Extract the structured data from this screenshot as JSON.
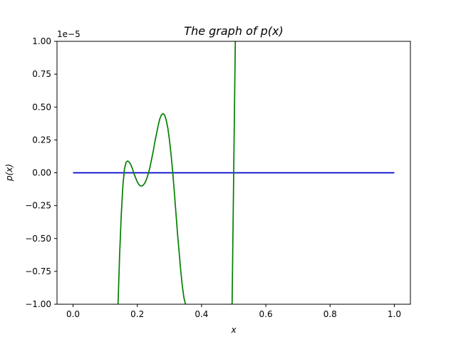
{
  "chart_data": {
    "type": "line",
    "title": "The graph of p(x)",
    "xlabel": "x",
    "ylabel": "p(x)",
    "y_offset_label": "1e−5",
    "xlim": [
      -0.05,
      1.05
    ],
    "ylim": [
      -1.0,
      1.0
    ],
    "x_ticks": [
      {
        "value": 0.0,
        "label": "0.0"
      },
      {
        "value": 0.2,
        "label": "0.2"
      },
      {
        "value": 0.4,
        "label": "0.4"
      },
      {
        "value": 0.6,
        "label": "0.6"
      },
      {
        "value": 0.8,
        "label": "0.8"
      },
      {
        "value": 1.0,
        "label": "1.0"
      }
    ],
    "y_ticks": [
      {
        "value": 1.0,
        "label": "1.00"
      },
      {
        "value": 0.75,
        "label": "0.75"
      },
      {
        "value": 0.5,
        "label": "0.50"
      },
      {
        "value": 0.25,
        "label": "0.25"
      },
      {
        "value": 0.0,
        "label": "0.00"
      },
      {
        "value": -0.25,
        "label": "−0.25"
      },
      {
        "value": -0.5,
        "label": "−0.50"
      },
      {
        "value": -0.75,
        "label": "−0.75"
      },
      {
        "value": -1.0,
        "label": "−1.00"
      }
    ],
    "grid": false,
    "series": [
      {
        "color": "#0000cc",
        "x": [
          0.0,
          1.0
        ],
        "y": [
          0.0,
          0.0
        ]
      },
      {
        "color": "#008000",
        "x": [
          0.14,
          0.145,
          0.15,
          0.155,
          0.16,
          0.165,
          0.17,
          0.175,
          0.18,
          0.185,
          0.19,
          0.195,
          0.2,
          0.205,
          0.21,
          0.215,
          0.22,
          0.225,
          0.23,
          0.235,
          0.24,
          0.245,
          0.25,
          0.255,
          0.26,
          0.265,
          0.27,
          0.275,
          0.28,
          0.285,
          0.29,
          0.295,
          0.3,
          0.305,
          0.31,
          0.315,
          0.32,
          0.325,
          0.33,
          0.335,
          0.34,
          0.345,
          0.35,
          0.355,
          0.495,
          0.5,
          0.505
        ],
        "y": [
          -1.0,
          -0.62,
          -0.32,
          -0.1,
          0.03,
          0.08,
          0.09,
          0.08,
          0.06,
          0.03,
          -0.01,
          -0.04,
          -0.07,
          -0.09,
          -0.1,
          -0.1,
          -0.09,
          -0.07,
          -0.04,
          0.0,
          0.05,
          0.11,
          0.17,
          0.24,
          0.3,
          0.36,
          0.41,
          0.44,
          0.45,
          0.44,
          0.4,
          0.34,
          0.25,
          0.14,
          0.01,
          -0.14,
          -0.3,
          -0.46,
          -0.6,
          -0.74,
          -0.86,
          -0.95,
          -1.0,
          -1.05,
          -1.0,
          0.0,
          1.0
        ]
      }
    ]
  }
}
